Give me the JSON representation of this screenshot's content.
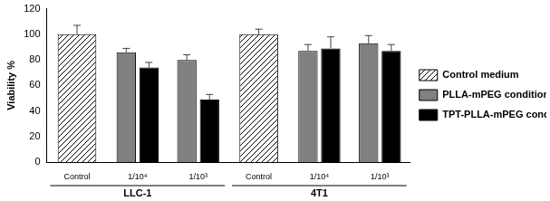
{
  "chart_data": {
    "type": "bar",
    "y_label": "Viability %",
    "categories": [
      "Control",
      "1/10⁴",
      "1/10³",
      "Control",
      "1/10⁴",
      "1/10³"
    ],
    "groups": [
      "LLC-1",
      "LLC-1",
      "LLC-1",
      "4T1",
      "4T1",
      "4T1"
    ],
    "ylim": [
      0,
      120
    ],
    "yticks": [
      0,
      20,
      40,
      60,
      80,
      100,
      120
    ],
    "grid": false,
    "legend": "right",
    "series": [
      {
        "name": "Control medium",
        "color": "#ffffff",
        "values": [
          100,
          null,
          null,
          100,
          null,
          null
        ],
        "errors": [
          7,
          null,
          null,
          4,
          null,
          null
        ]
      },
      {
        "name": "PLLA-mPEG conditioned medium",
        "color": "#808080",
        "values": [
          null,
          86,
          80,
          null,
          87,
          93
        ],
        "errors": [
          null,
          3,
          4,
          null,
          5,
          6
        ]
      },
      {
        "name": "TPT-PLLA-mPEG conditioned medium",
        "color": "#000000",
        "values": [
          null,
          74,
          49,
          null,
          89,
          87
        ],
        "errors": [
          null,
          4,
          4,
          null,
          9,
          5
        ]
      }
    ]
  }
}
